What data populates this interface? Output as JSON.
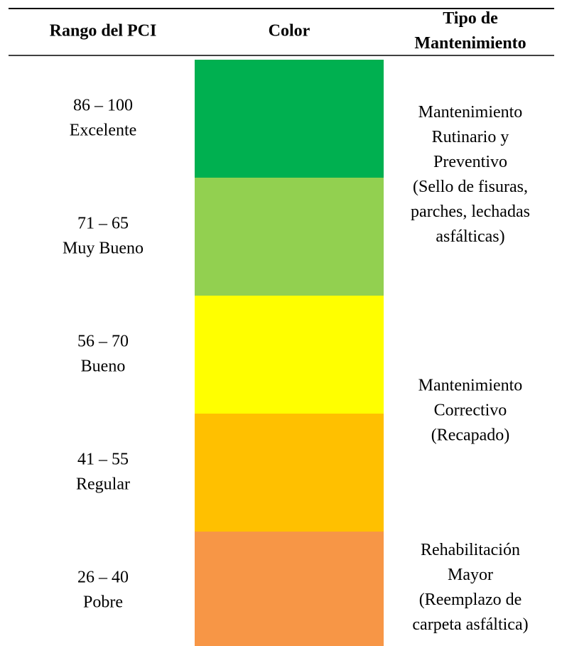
{
  "table": {
    "headers": [
      [
        "Rango del PCI"
      ],
      [
        "Color"
      ],
      [
        "Tipo de",
        "Mantenimiento"
      ]
    ],
    "rows": [
      {
        "range": "86 – 100",
        "label": "Excelente",
        "color": "#00b050"
      },
      {
        "range": "71 – 65",
        "label": "Muy Bueno",
        "color": "#92d050"
      },
      {
        "range": "56 – 70",
        "label": "Bueno",
        "color": "#ffff00"
      },
      {
        "range": "41 – 55",
        "label": "Regular",
        "color": "#ffc000"
      },
      {
        "range": "26 – 40",
        "label": "Pobre",
        "color": "#f79646"
      }
    ],
    "maintenance": [
      {
        "rows": [
          0,
          1
        ],
        "lines": [
          "Mantenimiento",
          "Rutinario y",
          "Preventivo",
          "(Sello de fisuras,",
          "parches, lechadas",
          "asfálticas)"
        ]
      },
      {
        "rows": [
          2,
          3
        ],
        "lines": [
          "Mantenimiento",
          "Correctivo",
          "(Recapado)"
        ]
      },
      {
        "rows": [
          4,
          4
        ],
        "lines": [
          "Rehabilitación",
          "Mayor",
          "(Reemplazo de",
          "carpeta asfáltica)"
        ]
      }
    ]
  }
}
